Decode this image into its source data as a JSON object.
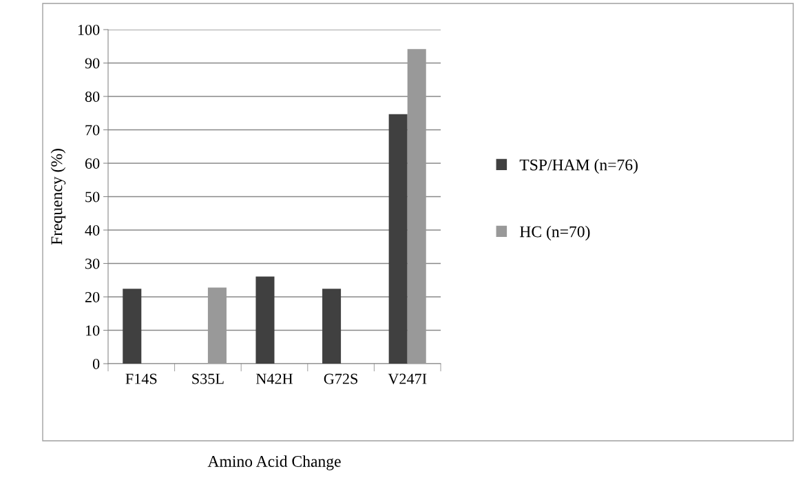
{
  "chart_data": {
    "type": "bar",
    "xlabel": "Amino Acid Change",
    "ylabel": "Frequency (%)",
    "categories": [
      "F14S",
      "S35L",
      "N42H",
      "G72S",
      "V247I"
    ],
    "series": [
      {
        "name": "TSP/HAM (n=76)",
        "color": "#404040",
        "values": [
          22.4,
          null,
          26.1,
          22.4,
          74.7
        ]
      },
      {
        "name": "HC (n=70)",
        "color": "#999999",
        "values": [
          null,
          22.8,
          null,
          null,
          94.2
        ]
      }
    ],
    "ylim": [
      0,
      100
    ],
    "yticks": [
      0,
      10,
      20,
      30,
      40,
      50,
      60,
      70,
      80,
      90,
      100
    ],
    "grid": "y",
    "legend": "right"
  }
}
